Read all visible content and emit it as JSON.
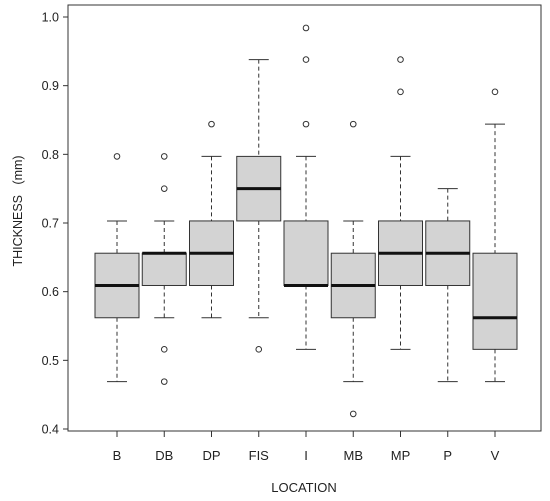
{
  "chart_data": {
    "type": "box",
    "xlabel": "LOCATION",
    "ylabel": "THICKNESS   (mm)",
    "ylim": [
      0.4,
      1.0
    ],
    "yticks": [
      "0.4",
      "0.5",
      "0.6",
      "0.7",
      "0.8",
      "0.9",
      "1.0"
    ],
    "grid": false,
    "box_fill": "#d3d3d3",
    "categories": [
      "B",
      "DB",
      "DP",
      "FIS",
      "I",
      "MB",
      "MP",
      "P",
      "V"
    ],
    "boxes": [
      {
        "category": "B",
        "whisker_low": 0.469,
        "q1": 0.562,
        "median": 0.609,
        "q3": 0.656,
        "whisker_high": 0.703,
        "outliers": [
          0.797
        ]
      },
      {
        "category": "DB",
        "whisker_low": 0.562,
        "q1": 0.609,
        "median": 0.656,
        "q3": 0.656,
        "whisker_high": 0.703,
        "outliers": [
          0.469,
          0.516,
          0.75,
          0.797
        ]
      },
      {
        "category": "DP",
        "whisker_low": 0.562,
        "q1": 0.609,
        "median": 0.656,
        "q3": 0.703,
        "whisker_high": 0.797,
        "outliers": [
          0.844
        ]
      },
      {
        "category": "FIS",
        "whisker_low": 0.562,
        "q1": 0.703,
        "median": 0.75,
        "q3": 0.797,
        "whisker_high": 0.938,
        "outliers": [
          0.516
        ]
      },
      {
        "category": "I",
        "whisker_low": 0.516,
        "q1": 0.609,
        "median": 0.609,
        "q3": 0.703,
        "whisker_high": 0.797,
        "outliers": [
          0.844,
          0.938,
          0.984
        ]
      },
      {
        "category": "MB",
        "whisker_low": 0.469,
        "q1": 0.562,
        "median": 0.609,
        "q3": 0.656,
        "whisker_high": 0.703,
        "outliers": [
          0.422,
          0.844
        ]
      },
      {
        "category": "MP",
        "whisker_low": 0.516,
        "q1": 0.609,
        "median": 0.656,
        "q3": 0.703,
        "whisker_high": 0.797,
        "outliers": [
          0.891,
          0.938
        ]
      },
      {
        "category": "P",
        "whisker_low": 0.469,
        "q1": 0.609,
        "median": 0.656,
        "q3": 0.703,
        "whisker_high": 0.75,
        "outliers": []
      },
      {
        "category": "V",
        "whisker_low": 0.469,
        "q1": 0.516,
        "median": 0.562,
        "q3": 0.656,
        "whisker_high": 0.844,
        "outliers": [
          0.891
        ]
      }
    ]
  }
}
